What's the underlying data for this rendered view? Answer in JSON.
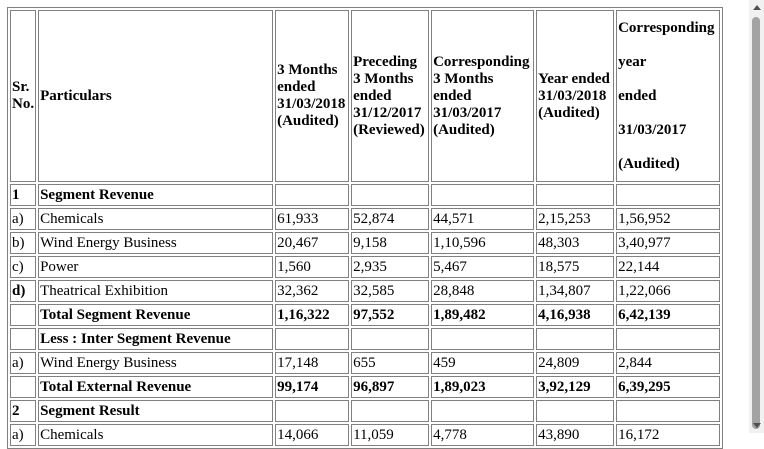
{
  "header": {
    "sr_no": "Sr. No.",
    "particulars": "Particulars",
    "col1": "3 Months ended 31/03/2018 (Audited)",
    "col2": "Preceding 3 Months ended 31/12/2017 (Reviewed)",
    "col3": "Corresponding 3 Months ended 31/03/2017 (Audited)",
    "col4": "Year ended 31/03/2018 (Audited)",
    "col5_line1": "Corresponding",
    "col5_line2": "year",
    "col5_line3": "ended",
    "col5_line4": "31/03/2017",
    "col5_line5": "(Audited)"
  },
  "rows": [
    {
      "sr": "1",
      "particulars": "Segment Revenue",
      "values": [
        "",
        "",
        "",
        "",
        ""
      ],
      "bold": true
    },
    {
      "sr": "a)",
      "particulars": "Chemicals",
      "values": [
        "61,933",
        "52,874",
        "44,571",
        "2,15,253",
        "1,56,952"
      ],
      "bold": false
    },
    {
      "sr": "b)",
      "particulars": "Wind Energy Business",
      "values": [
        "20,467",
        "9,158",
        "1,10,596",
        "48,303",
        "3,40,977"
      ],
      "bold": false
    },
    {
      "sr": "c)",
      "particulars": "Power",
      "values": [
        "1,560",
        "2,935",
        "5,467",
        "18,575",
        "22,144"
      ],
      "bold": false
    },
    {
      "sr": "d)",
      "particulars": "Theatrical Exhibition",
      "values": [
        "32,362",
        "32,585",
        "28,848",
        "1,34,807",
        "1,22,066"
      ],
      "bold": false,
      "sr_bold": true
    },
    {
      "sr": "",
      "particulars": "Total Segment Revenue",
      "values": [
        "1,16,322",
        "97,552",
        "1,89,482",
        "4,16,938",
        "6,42,139"
      ],
      "bold": true
    },
    {
      "sr": "",
      "particulars": "Less : Inter Segment Revenue",
      "values": [
        "",
        "",
        "",
        "",
        ""
      ],
      "bold": true
    },
    {
      "sr": "a)",
      "particulars": "Wind Energy Business",
      "values": [
        "17,148",
        "655",
        "459",
        "24,809",
        "2,844"
      ],
      "bold": false
    },
    {
      "sr": "",
      "particulars": "Total External Revenue",
      "values": [
        "99,174",
        "96,897",
        "1,89,023",
        "3,92,129",
        "6,39,295"
      ],
      "bold": true
    },
    {
      "sr": "2",
      "particulars": "Segment Result",
      "values": [
        "",
        "",
        "",
        "",
        ""
      ],
      "bold": true
    },
    {
      "sr": "a)",
      "particulars": "Chemicals",
      "values": [
        "14,066",
        "11,059",
        "4,778",
        "43,890",
        "16,172"
      ],
      "bold": false
    }
  ]
}
